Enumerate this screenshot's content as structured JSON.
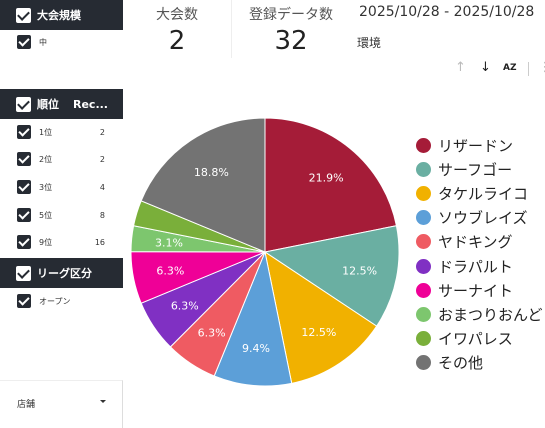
{
  "filters": {
    "section1": {
      "title": "大会規模",
      "rows": [
        {
          "label": "中"
        }
      ]
    },
    "section2": {
      "title": "順位",
      "col2": "Rec...",
      "rows": [
        {
          "label": "1位",
          "count": "2"
        },
        {
          "label": "2位",
          "count": "2"
        },
        {
          "label": "3位",
          "count": "4"
        },
        {
          "label": "5位",
          "count": "8"
        },
        {
          "label": "9位",
          "count": "16"
        }
      ]
    },
    "section3": {
      "title": "リーグ区分",
      "rows": [
        {
          "label": "オープン"
        }
      ]
    },
    "store": {
      "label": "店舗"
    }
  },
  "scorecards": [
    {
      "title": "大会数",
      "value": "2"
    },
    {
      "title": "登録データ数",
      "value": "32"
    }
  ],
  "date_range": "2025/10/28 - 2025/10/28",
  "environment_label": "環境",
  "toolbar": {
    "sort_up": "↑",
    "sort_down": "↓",
    "sort_az": "AZ",
    "more": "⋮"
  },
  "chart_data": {
    "type": "pie",
    "categories": [
      "リザードン",
      "サーフゴー",
      "タケルライコ",
      "ソウブレイズ",
      "ヤドキング",
      "ドラパルト",
      "サーナイト",
      "おまつりおんど",
      "イワパレス",
      "その他"
    ],
    "values": [
      21.9,
      12.5,
      12.5,
      9.4,
      6.3,
      6.3,
      6.3,
      3.1,
      3.1,
      18.8
    ],
    "labels": [
      "21.9%",
      "12.5%",
      "12.5%",
      "9.4%",
      "6.3%",
      "6.3%",
      "6.3%",
      "3.1%",
      "",
      "18.8%"
    ],
    "colors": [
      "#a51c38",
      "#6aafa2",
      "#f1b100",
      "#5c9fd8",
      "#ef5b62",
      "#8030c3",
      "#ef0097",
      "#7dc66e",
      "#7aaf3a",
      "#737373"
    ],
    "legend_position": "right"
  }
}
